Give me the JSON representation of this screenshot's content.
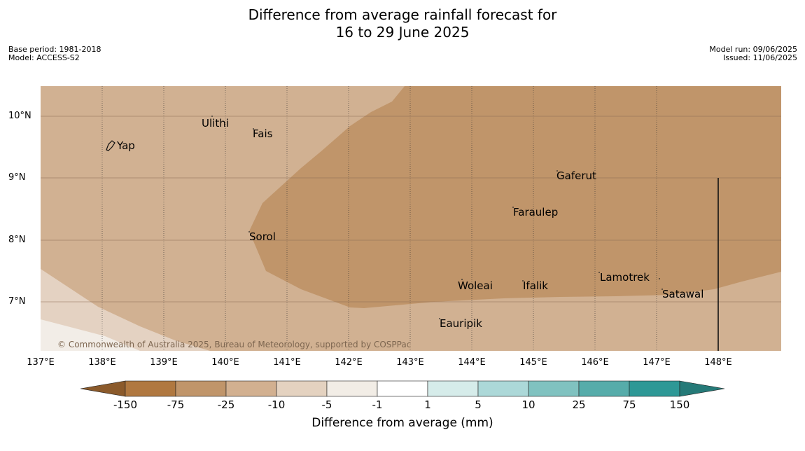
{
  "title_line1": "Difference from average rainfall forecast for",
  "title_line2": "16 to 29 June 2025",
  "meta_left": {
    "base_period": "Base period: 1981-2018",
    "model": "Model: ACCESS-S2"
  },
  "meta_right": {
    "model_run": "Model run: 09/06/2025",
    "issued": "Issued: 11/06/2025"
  },
  "lat_labels": [
    "10°N",
    "9°N",
    "8°N",
    "7°N"
  ],
  "lon_labels": [
    "137°E",
    "138°E",
    "139°E",
    "140°E",
    "141°E",
    "142°E",
    "143°E",
    "144°E",
    "145°E",
    "146°E",
    "147°E",
    "148°E"
  ],
  "places": [
    "Yap",
    "Ulithi",
    "Fais",
    "Gaferut",
    "Faraulep",
    "Sorol",
    "Woleai",
    "Ifalik",
    "Lamotrek",
    "Satawal",
    "Eauripik"
  ],
  "copyright": "© Commonwealth of Australia 2025, Bureau of Meteorology, supported by COSPPac",
  "colorbar": {
    "ticks": [
      "-150",
      "-75",
      "-25",
      "-10",
      "-5",
      "-1",
      "1",
      "5",
      "10",
      "25",
      "75",
      "150"
    ],
    "label": "Difference from average (mm)",
    "colors": [
      "#8b5a2b",
      "#b07840",
      "#c0956a",
      "#d2b090",
      "#e4d2c0",
      "#f2ede6",
      "#ffffff",
      "#d6ecea",
      "#acd8d8",
      "#80c2c0",
      "#56acaa",
      "#2e9896",
      "#257a78"
    ]
  },
  "map_colors": {
    "zone_25": "#d1b192",
    "zone_75": "#c0956a",
    "zone_10": "#e4d2c2",
    "zone_5": "#f2ede7"
  }
}
